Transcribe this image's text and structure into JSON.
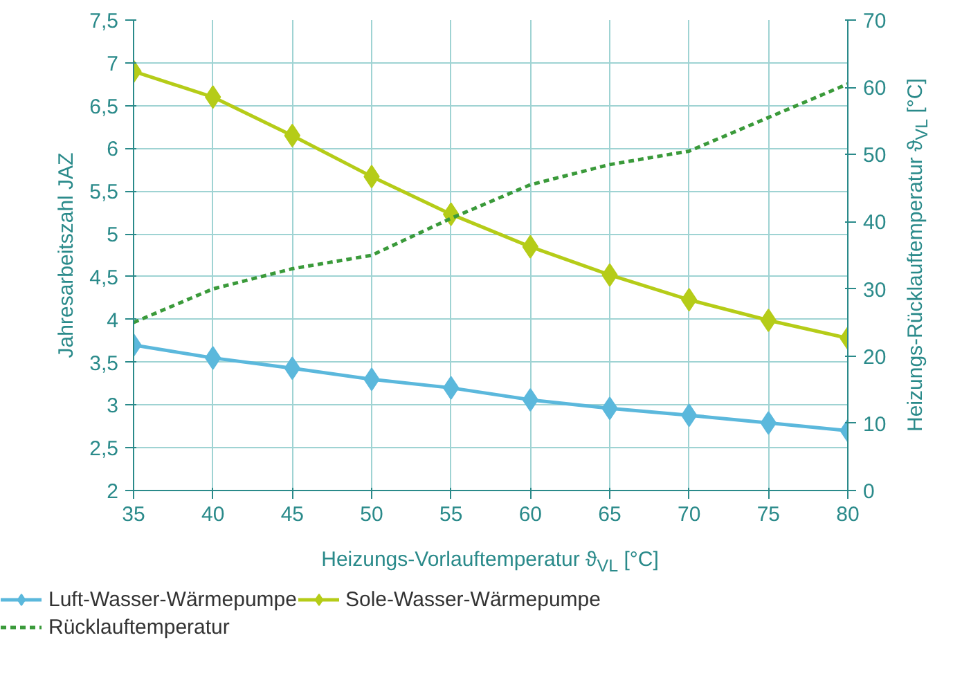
{
  "chart_data": {
    "type": "line",
    "xlabel": "Heizungs-Vorlauftemperatur ϑ$_{VL}$ [°C]",
    "ylabel": "Jahresarbeitszahl JAZ",
    "y2label": "Heizungs-Rücklauftemperatur ϑ$_{VL}$ [°C]",
    "x": [
      35,
      40,
      45,
      50,
      55,
      60,
      65,
      70,
      75,
      80
    ],
    "series": [
      {
        "name": "Luft-Wasser-Wärmepumpe",
        "color": "#5bb8dc",
        "marker": "diamond",
        "values": [
          3.7,
          3.55,
          3.43,
          3.3,
          3.2,
          3.06,
          2.96,
          2.88,
          2.79,
          2.7
        ]
      },
      {
        "name": "Sole-Wasser-Wärmepumpe",
        "color": "#b5cc18",
        "marker": "diamond",
        "values": [
          6.9,
          6.6,
          6.15,
          5.67,
          5.23,
          4.85,
          4.52,
          4.23,
          3.99,
          3.78
        ]
      },
      {
        "name": "Rücklauftemperatur",
        "color": "#3a9a3a",
        "marker": "none",
        "line_style": "dashed",
        "axis": "y2",
        "values": [
          25,
          30,
          33,
          35,
          40.5,
          45.5,
          48.5,
          50.5,
          55.5,
          60.5
        ]
      }
    ],
    "xlim": [
      35,
      80
    ],
    "xticks": [
      35,
      40,
      45,
      50,
      55,
      60,
      65,
      70,
      75,
      80
    ],
    "ylim": [
      2,
      7.5
    ],
    "yticks": [
      2,
      {
        "value": 2.5,
        "label": "2,5"
      },
      3,
      {
        "value": 3.5,
        "label": "3,5"
      },
      4,
      {
        "value": 4.5,
        "label": "4,5"
      },
      5,
      {
        "value": 5.5,
        "label": "5,5"
      },
      6,
      {
        "value": 6.5,
        "label": "6,5"
      },
      7,
      {
        "value": 7.5,
        "label": "7,5"
      }
    ],
    "y2lim": [
      0,
      70
    ],
    "y2ticks": [
      0,
      10,
      20,
      30,
      40,
      50,
      60,
      70
    ],
    "grid": true,
    "legend": "bottom"
  }
}
